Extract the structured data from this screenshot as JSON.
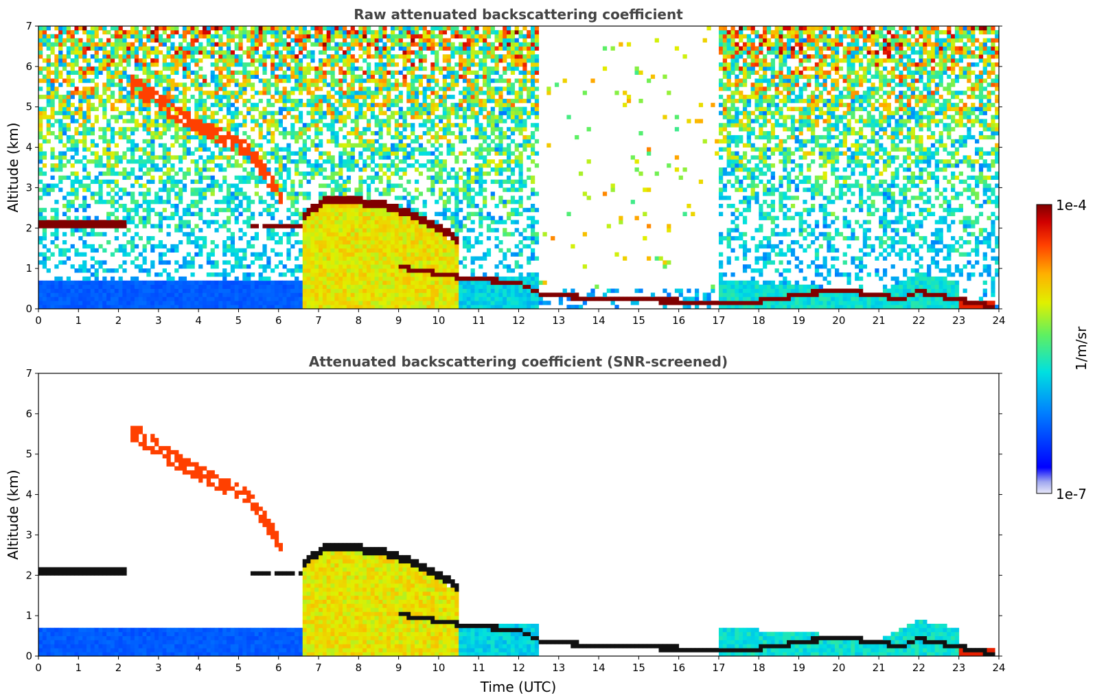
{
  "chart_data": [
    {
      "type": "heatmap",
      "title": "Raw attenuated backscattering coefficient",
      "xlabel": "",
      "ylabel": "Altitude (km)",
      "xlim": [
        0,
        24
      ],
      "ylim": [
        0,
        7
      ],
      "xticks": [
        "0",
        "1",
        "2",
        "3",
        "4",
        "5",
        "6",
        "7",
        "8",
        "9",
        "10",
        "11",
        "12",
        "13",
        "14",
        "15",
        "16",
        "17",
        "18",
        "19",
        "20",
        "21",
        "22",
        "23",
        "24"
      ],
      "yticks": [
        "0",
        "1",
        "2",
        "3",
        "4",
        "5",
        "6",
        "7"
      ],
      "features": [
        {
          "name": "boundary layer aerosol",
          "x": [
            0,
            6.6
          ],
          "y": [
            0,
            0.7
          ],
          "level": 0.25
        },
        {
          "name": "aerosol layer",
          "x": [
            0,
            2.2
          ],
          "y": [
            2.02,
            2.2
          ],
          "level": 1.0
        },
        {
          "name": "descending cloud band",
          "x": [
            2.3,
            6.1
          ],
          "y": [
            5.6,
            2.7
          ],
          "level": 0.85
        },
        {
          "name": "precipitation / aerosol",
          "x": [
            6.6,
            10.8
          ],
          "y": [
            0,
            2.6
          ],
          "level": 0.65
        },
        {
          "name": "cloud top",
          "x": [
            7.3,
            10.5
          ],
          "y": [
            2.7,
            1.7
          ],
          "level": 1.0
        },
        {
          "name": "low cloud",
          "x": [
            9,
            12.5
          ],
          "y": [
            1.1,
            0.6
          ],
          "level": 1.0
        },
        {
          "name": "surface layer",
          "x": [
            12.5,
            23.9
          ],
          "y": [
            0,
            0.3
          ],
          "level": 1.0
        }
      ]
    },
    {
      "type": "heatmap",
      "title": "Attenuated backscattering coefficient (SNR-screened)",
      "xlabel": "Time (UTC)",
      "ylabel": "Altitude (km)",
      "xlim": [
        0,
        24
      ],
      "ylim": [
        0,
        7
      ],
      "xticks": [
        "0",
        "1",
        "2",
        "3",
        "4",
        "5",
        "6",
        "7",
        "8",
        "9",
        "10",
        "11",
        "12",
        "13",
        "14",
        "15",
        "16",
        "17",
        "18",
        "19",
        "20",
        "21",
        "22",
        "23",
        "24"
      ],
      "yticks": [
        "0",
        "1",
        "2",
        "3",
        "4",
        "5",
        "6",
        "7"
      ]
    }
  ],
  "colorbar": {
    "label": "1/m/sr",
    "max_label": "1e-4",
    "min_label": "1e-7",
    "scale": "log",
    "range": [
      1e-07,
      0.0001
    ]
  }
}
